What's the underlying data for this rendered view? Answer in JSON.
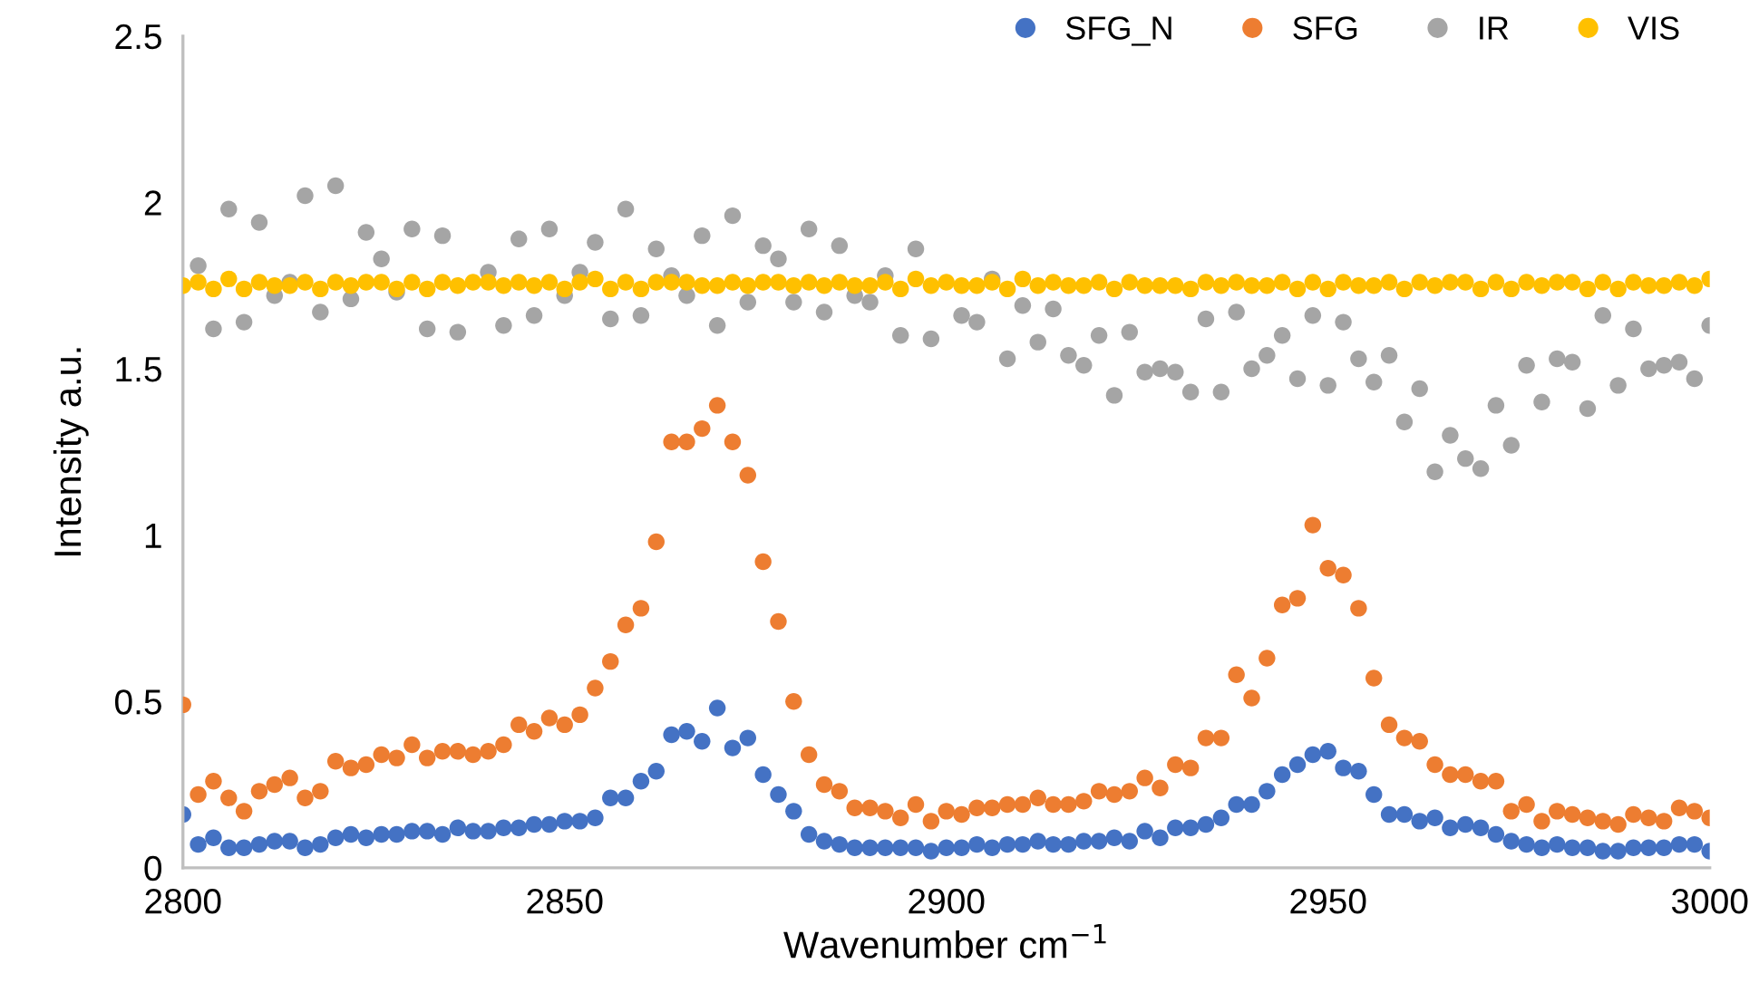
{
  "chart_data": {
    "type": "scatter",
    "xlabel": "Wavenumber cm$^{−1}$",
    "ylabel": "Intensity a.u.",
    "x": [
      2800,
      2802,
      2804,
      2806,
      2808,
      2810,
      2812,
      2814,
      2816,
      2818,
      2820,
      2822,
      2824,
      2826,
      2828,
      2830,
      2832,
      2834,
      2836,
      2838,
      2840,
      2842,
      2844,
      2846,
      2848,
      2850,
      2852,
      2854,
      2856,
      2858,
      2860,
      2862,
      2864,
      2866,
      2868,
      2870,
      2872,
      2874,
      2876,
      2878,
      2880,
      2882,
      2884,
      2886,
      2888,
      2890,
      2892,
      2894,
      2896,
      2898,
      2900,
      2902,
      2904,
      2906,
      2908,
      2910,
      2912,
      2914,
      2916,
      2918,
      2920,
      2922,
      2924,
      2926,
      2928,
      2930,
      2932,
      2934,
      2936,
      2938,
      2940,
      2942,
      2944,
      2946,
      2948,
      2950,
      2952,
      2954,
      2956,
      2958,
      2960,
      2962,
      2964,
      2966,
      2968,
      2970,
      2972,
      2974,
      2976,
      2978,
      2980,
      2982,
      2984,
      2986,
      2988,
      2990,
      2992,
      2994,
      2996,
      2998,
      3000
    ],
    "series": [
      {
        "name": "SFG_N",
        "color": "#4472c4",
        "values": [
          0.16,
          0.07,
          0.09,
          0.06,
          0.06,
          0.07,
          0.08,
          0.08,
          0.06,
          0.07,
          0.09,
          0.1,
          0.09,
          0.1,
          0.1,
          0.11,
          0.11,
          0.1,
          0.12,
          0.11,
          0.11,
          0.12,
          0.12,
          0.13,
          0.13,
          0.14,
          0.14,
          0.15,
          0.21,
          0.21,
          0.26,
          0.29,
          0.4,
          0.41,
          0.38,
          0.48,
          0.36,
          0.39,
          0.28,
          0.22,
          0.17,
          0.1,
          0.08,
          0.07,
          0.06,
          0.06,
          0.06,
          0.06,
          0.06,
          0.05,
          0.06,
          0.06,
          0.07,
          0.06,
          0.07,
          0.07,
          0.08,
          0.07,
          0.07,
          0.08,
          0.08,
          0.09,
          0.08,
          0.11,
          0.09,
          0.12,
          0.12,
          0.13,
          0.15,
          0.19,
          0.19,
          0.23,
          0.28,
          0.31,
          0.34,
          0.35,
          0.3,
          0.29,
          0.22,
          0.16,
          0.16,
          0.14,
          0.15,
          0.12,
          0.13,
          0.12,
          0.1,
          0.08,
          0.07,
          0.06,
          0.07,
          0.06,
          0.06,
          0.05,
          0.05,
          0.06,
          0.06,
          0.06,
          0.07,
          0.07,
          0.05
        ]
      },
      {
        "name": "SFG",
        "color": "#ed7d31",
        "values": [
          0.49,
          0.22,
          0.26,
          0.21,
          0.17,
          0.23,
          0.25,
          0.27,
          0.21,
          0.23,
          0.32,
          0.3,
          0.31,
          0.34,
          0.33,
          0.37,
          0.33,
          0.35,
          0.35,
          0.34,
          0.35,
          0.37,
          0.43,
          0.41,
          0.45,
          0.43,
          0.46,
          0.54,
          0.62,
          0.73,
          0.78,
          0.98,
          1.28,
          1.28,
          1.32,
          1.39,
          1.28,
          1.18,
          0.92,
          0.74,
          0.5,
          0.34,
          0.25,
          0.23,
          0.18,
          0.18,
          0.17,
          0.15,
          0.19,
          0.14,
          0.17,
          0.16,
          0.18,
          0.18,
          0.19,
          0.19,
          0.21,
          0.19,
          0.19,
          0.2,
          0.23,
          0.22,
          0.23,
          0.27,
          0.24,
          0.31,
          0.3,
          0.39,
          0.39,
          0.58,
          0.51,
          0.63,
          0.79,
          0.81,
          1.03,
          0.9,
          0.88,
          0.78,
          0.57,
          0.43,
          0.39,
          0.38,
          0.31,
          0.28,
          0.28,
          0.26,
          0.26,
          0.17,
          0.19,
          0.14,
          0.17,
          0.16,
          0.15,
          0.14,
          0.13,
          0.16,
          0.15,
          0.14,
          0.18,
          0.17,
          0.15
        ]
      },
      {
        "name": "IR",
        "color": "#a5a5a5",
        "values": [
          null,
          1.81,
          1.62,
          1.98,
          1.64,
          1.94,
          1.72,
          1.76,
          2.02,
          1.67,
          2.05,
          1.71,
          1.91,
          1.83,
          1.73,
          1.92,
          1.62,
          1.9,
          1.61,
          null,
          1.79,
          1.63,
          1.89,
          1.66,
          1.92,
          1.72,
          1.79,
          1.88,
          1.65,
          1.98,
          1.66,
          1.86,
          1.78,
          1.72,
          1.9,
          1.63,
          1.96,
          1.7,
          1.87,
          1.83,
          1.7,
          1.92,
          1.67,
          1.87,
          1.72,
          1.7,
          1.78,
          1.6,
          1.86,
          1.59,
          null,
          1.66,
          1.64,
          1.77,
          1.53,
          1.69,
          1.58,
          1.68,
          1.54,
          1.51,
          1.6,
          1.42,
          1.61,
          1.49,
          1.5,
          1.49,
          1.43,
          1.65,
          1.43,
          1.67,
          1.5,
          1.54,
          1.6,
          1.47,
          1.66,
          1.45,
          1.64,
          1.53,
          1.46,
          1.54,
          1.34,
          1.44,
          1.19,
          1.3,
          1.23,
          1.2,
          1.39,
          1.27,
          1.51,
          1.4,
          1.53,
          1.52,
          1.38,
          1.66,
          1.45,
          1.62,
          1.5,
          1.51,
          1.52,
          1.47,
          1.63
        ]
      },
      {
        "name": "VIS",
        "color": "#ffc000",
        "values": [
          1.75,
          1.76,
          1.74,
          1.77,
          1.74,
          1.76,
          1.75,
          1.75,
          1.76,
          1.74,
          1.76,
          1.75,
          1.76,
          1.76,
          1.74,
          1.76,
          1.74,
          1.76,
          1.75,
          1.76,
          1.76,
          1.75,
          1.76,
          1.75,
          1.76,
          1.74,
          1.76,
          1.77,
          1.74,
          1.76,
          1.74,
          1.76,
          1.76,
          1.76,
          1.75,
          1.75,
          1.76,
          1.75,
          1.76,
          1.76,
          1.75,
          1.76,
          1.75,
          1.76,
          1.75,
          1.75,
          1.76,
          1.74,
          1.77,
          1.75,
          1.76,
          1.75,
          1.75,
          1.76,
          1.74,
          1.77,
          1.75,
          1.76,
          1.75,
          1.75,
          1.76,
          1.74,
          1.76,
          1.75,
          1.75,
          1.75,
          1.74,
          1.76,
          1.75,
          1.76,
          1.75,
          1.75,
          1.76,
          1.74,
          1.76,
          1.74,
          1.76,
          1.75,
          1.75,
          1.76,
          1.74,
          1.76,
          1.75,
          1.76,
          1.76,
          1.74,
          1.76,
          1.74,
          1.76,
          1.75,
          1.76,
          1.76,
          1.74,
          1.76,
          1.74,
          1.76,
          1.75,
          1.75,
          1.76,
          1.75,
          1.77
        ]
      }
    ],
    "xlim": [
      2800,
      3000
    ],
    "xticks": [
      2800,
      2850,
      2900,
      2950,
      3000
    ],
    "ylim": [
      0,
      2.5
    ],
    "yticks": [
      0,
      0.5,
      1,
      1.5,
      2,
      2.5
    ],
    "marker": "circle",
    "legend": "top right"
  }
}
